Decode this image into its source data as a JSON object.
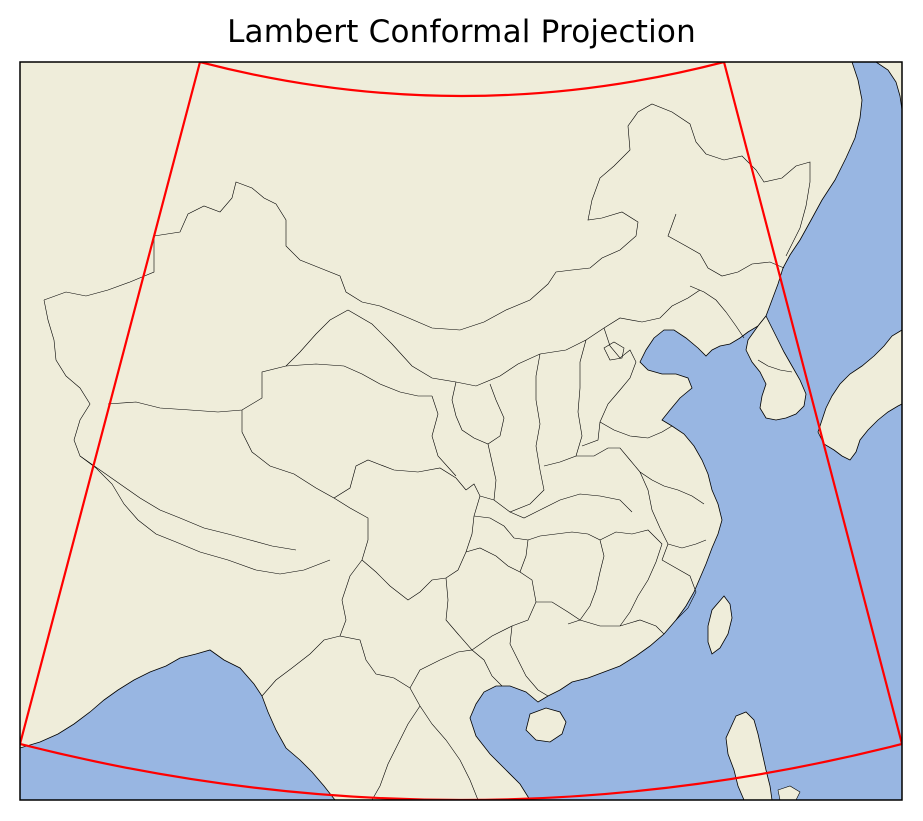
{
  "title": "Lambert Conformal Projection",
  "colors": {
    "land": "#efedda",
    "ocean": "#98b6e2",
    "boundary_box": "#ff0000",
    "border_lines": "#000000",
    "frame": "#000000"
  },
  "map": {
    "projection": "lambert-conformal",
    "extent_outline": "red-fan-shaped-boundary",
    "features": [
      "land",
      "ocean",
      "coastlines",
      "country-borders",
      "province-borders"
    ]
  }
}
